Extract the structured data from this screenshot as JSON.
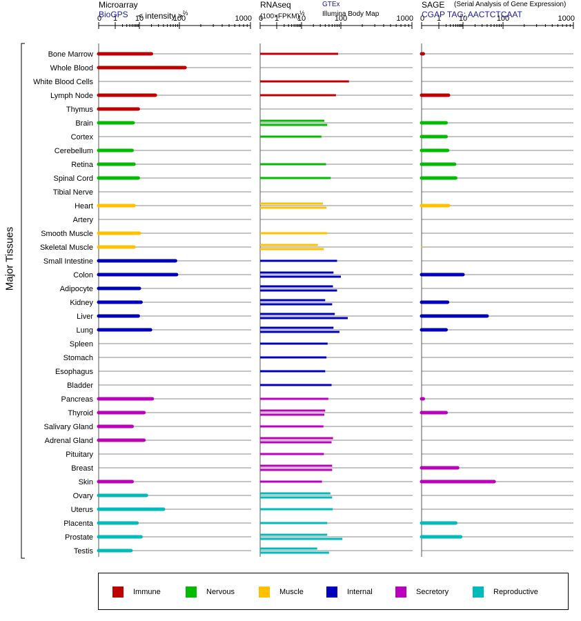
{
  "headers": {
    "microarray": {
      "title": "Microarray",
      "source": "BioGPS",
      "unit_text": "< intensity >",
      "unit_exp": "⅔"
    },
    "rnaseq": {
      "title": "RNAseq",
      "unit_text": "(100×FPKM)",
      "unit_exp": "½",
      "source1": "GTEx",
      "source2": "Illumina Body Map"
    },
    "sage": {
      "title": "SAGE",
      "subtitle": "(Serial Analysis of Gene Expression)",
      "source": "CGAP TAG: AACTCTCAAT"
    }
  },
  "y_axis_label": "Major Tissues",
  "legend": [
    {
      "name": "Immune",
      "color": "#c00000"
    },
    {
      "name": "Nervous",
      "color": "#00bb00"
    },
    {
      "name": "Muscle",
      "color": "#ffc000"
    },
    {
      "name": "Internal",
      "color": "#0000bb"
    },
    {
      "name": "Secretory",
      "color": "#bb00bb"
    },
    {
      "name": "Reproductive",
      "color": "#00bbbb"
    }
  ],
  "chart_data": {
    "type": "bar",
    "orientation": "horizontal",
    "scale": "log (with 0)",
    "tick_labels": [
      "0",
      "1",
      "10",
      "100",
      "1000"
    ],
    "xlim": [
      0,
      1000
    ],
    "categories": [
      "Bone Marrow",
      "Whole Blood",
      "White Blood Cells",
      "Lymph Node",
      "Thymus",
      "Brain",
      "Cortex",
      "Cerebellum",
      "Retina",
      "Spinal Cord",
      "Tibial Nerve",
      "Heart",
      "Artery",
      "Smooth Muscle",
      "Skeletal Muscle",
      "Small Intestine",
      "Colon",
      "Adipocyte",
      "Kidney",
      "Liver",
      "Lung",
      "Spleen",
      "Stomach",
      "Esophagus",
      "Bladder",
      "Pancreas",
      "Thyroid",
      "Salivary Gland",
      "Adrenal Gland",
      "Pituitary",
      "Breast",
      "Skin",
      "Ovary",
      "Uterus",
      "Placenta",
      "Prostate",
      "Testis"
    ],
    "systems": [
      "Immune",
      "Immune",
      "Immune",
      "Immune",
      "Immune",
      "Nervous",
      "Nervous",
      "Nervous",
      "Nervous",
      "Nervous",
      "Nervous",
      "Muscle",
      "Muscle",
      "Muscle",
      "Muscle",
      "Internal",
      "Internal",
      "Internal",
      "Internal",
      "Internal",
      "Internal",
      "Internal",
      "Internal",
      "Internal",
      "Internal",
      "Secretory",
      "Secretory",
      "Secretory",
      "Secretory",
      "Secretory",
      "Secretory",
      "Secretory",
      "Reproductive",
      "Reproductive",
      "Reproductive",
      "Reproductive",
      "Reproductive"
    ],
    "panels": [
      {
        "name": "Microarray",
        "values": [
          20,
          120,
          null,
          25,
          9,
          5.5,
          null,
          5,
          6,
          9,
          null,
          6,
          null,
          10,
          6,
          80,
          85,
          10,
          11,
          9,
          19,
          null,
          null,
          null,
          null,
          21,
          13,
          5,
          13,
          null,
          null,
          5,
          15,
          40,
          8,
          11,
          4.5
        ]
      },
      {
        "name": "RNAseq (GTEx)",
        "values": [
          85,
          null,
          130,
          75,
          null,
          38,
          32,
          null,
          42,
          55,
          null,
          35,
          null,
          45,
          26,
          80,
          65,
          63,
          40,
          70,
          65,
          46,
          43,
          40,
          58,
          48,
          40,
          36,
          63,
          37,
          60,
          33,
          54,
          62,
          45,
          45,
          25
        ]
      },
      {
        "name": "RNAseq (Illumina Body Map)",
        "values": [
          null,
          null,
          null,
          null,
          null,
          45,
          null,
          null,
          null,
          null,
          null,
          43,
          null,
          null,
          37,
          null,
          100,
          80,
          60,
          125,
          92,
          null,
          null,
          null,
          null,
          null,
          38,
          null,
          58,
          null,
          60,
          null,
          60,
          null,
          null,
          105,
          50
        ]
      },
      {
        "name": "SAGE",
        "values": [
          0.1,
          null,
          null,
          2.5,
          null,
          2,
          2,
          2.3,
          4.5,
          5,
          null,
          2.5,
          null,
          null,
          0,
          null,
          10,
          null,
          2.3,
          40,
          2,
          null,
          null,
          null,
          null,
          0.1,
          2,
          null,
          null,
          null,
          6,
          60,
          null,
          null,
          5,
          8,
          null
        ]
      }
    ]
  }
}
